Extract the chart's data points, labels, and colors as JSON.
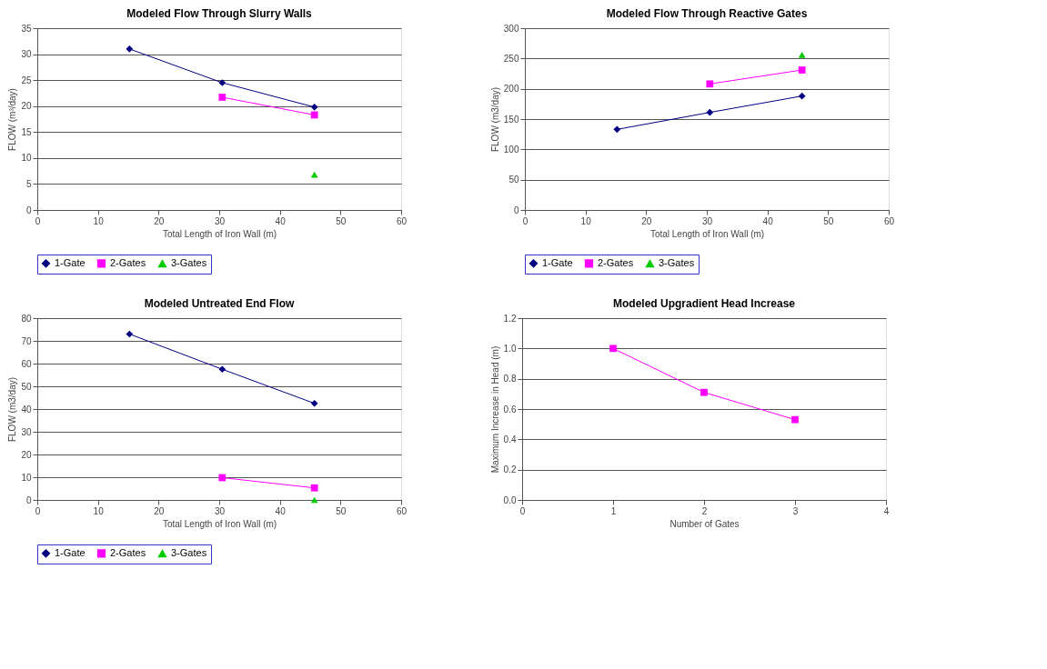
{
  "chart_data": [
    {
      "type": "line",
      "title": "Modeled Flow Through Slurry Walls",
      "xlabel": "Total Length of Iron Wall (m)",
      "ylabel": "FLOW (m³/day)",
      "xlim": [
        0,
        60
      ],
      "xticks": [
        0,
        10,
        20,
        30,
        40,
        50,
        60
      ],
      "ylim": [
        0,
        35
      ],
      "yticks": [
        0,
        5,
        10,
        15,
        20,
        25,
        30,
        35
      ],
      "grid": "y",
      "legend": "bottom",
      "series": [
        {
          "name": "1-Gate",
          "color": "#000080",
          "marker": "diamond",
          "x": [
            15.2,
            30.5,
            45.7
          ],
          "values": [
            31,
            24.5,
            19.8
          ]
        },
        {
          "name": "2-Gates",
          "color": "#ff00ff",
          "marker": "square",
          "x": [
            30.5,
            45.7
          ],
          "values": [
            21.7,
            18.3
          ]
        },
        {
          "name": "3-Gates",
          "color": "#00cc00",
          "marker": "triangle",
          "x": [
            45.7
          ],
          "values": [
            6.8
          ]
        }
      ]
    },
    {
      "type": "line",
      "title": "Modeled Flow Through Reactive Gates",
      "xlabel": "Total Length of Iron Wall (m)",
      "ylabel": "FLOW (m3/day)",
      "xlim": [
        0,
        60
      ],
      "xticks": [
        0,
        10,
        20,
        30,
        40,
        50,
        60
      ],
      "ylim": [
        0,
        300
      ],
      "yticks": [
        0,
        50,
        100,
        150,
        200,
        250,
        300
      ],
      "grid": "y",
      "legend": "bottom",
      "series": [
        {
          "name": "1-Gate",
          "color": "#000080",
          "marker": "diamond",
          "x": [
            15.2,
            30.5,
            45.7
          ],
          "values": [
            133,
            161,
            188
          ]
        },
        {
          "name": "2-Gates",
          "color": "#ff00ff",
          "marker": "square",
          "x": [
            30.5,
            45.7
          ],
          "values": [
            208,
            231
          ]
        },
        {
          "name": "3-Gates",
          "color": "#00cc00",
          "marker": "triangle",
          "x": [
            45.7
          ],
          "values": [
            256
          ]
        }
      ]
    },
    {
      "type": "line",
      "title": "Modeled Untreated End Flow",
      "xlabel": "Total Length of Iron Wall (m)",
      "ylabel": "FLOW (m3/day)",
      "xlim": [
        0,
        60
      ],
      "xticks": [
        0,
        10,
        20,
        30,
        40,
        50,
        60
      ],
      "ylim": [
        0,
        80
      ],
      "yticks": [
        0,
        10,
        20,
        30,
        40,
        50,
        60,
        70,
        80
      ],
      "grid": "y",
      "legend": "bottom",
      "series": [
        {
          "name": "1-Gate",
          "color": "#000080",
          "marker": "diamond",
          "x": [
            15.2,
            30.5,
            45.7
          ],
          "values": [
            73,
            57.5,
            42.5
          ]
        },
        {
          "name": "2-Gates",
          "color": "#ff00ff",
          "marker": "square",
          "x": [
            30.5,
            45.7
          ],
          "values": [
            9.8,
            5.3
          ]
        },
        {
          "name": "3-Gates",
          "color": "#00cc00",
          "marker": "triangle",
          "x": [
            45.7
          ],
          "values": [
            0
          ]
        }
      ]
    },
    {
      "type": "line",
      "title": "Modeled Upgradient Head Increase",
      "xlabel": "Number of Gates",
      "ylabel": "Maximum Increase in Head (m)",
      "xlim": [
        0,
        4
      ],
      "xticks": [
        0,
        1,
        2,
        3,
        4
      ],
      "ylim": [
        0,
        1.2
      ],
      "yticks": [
        {
          "value": 0,
          "label": "0.0"
        },
        0.2,
        0.4,
        0.6,
        0.8,
        {
          "value": 1,
          "label": "1.0"
        },
        1.2
      ],
      "grid": "y",
      "legend": false,
      "series": [
        {
          "color": "#ff00ff",
          "marker": "square",
          "x": [
            1,
            2,
            3
          ],
          "values": [
            1.0,
            0.71,
            0.53
          ]
        }
      ]
    }
  ]
}
